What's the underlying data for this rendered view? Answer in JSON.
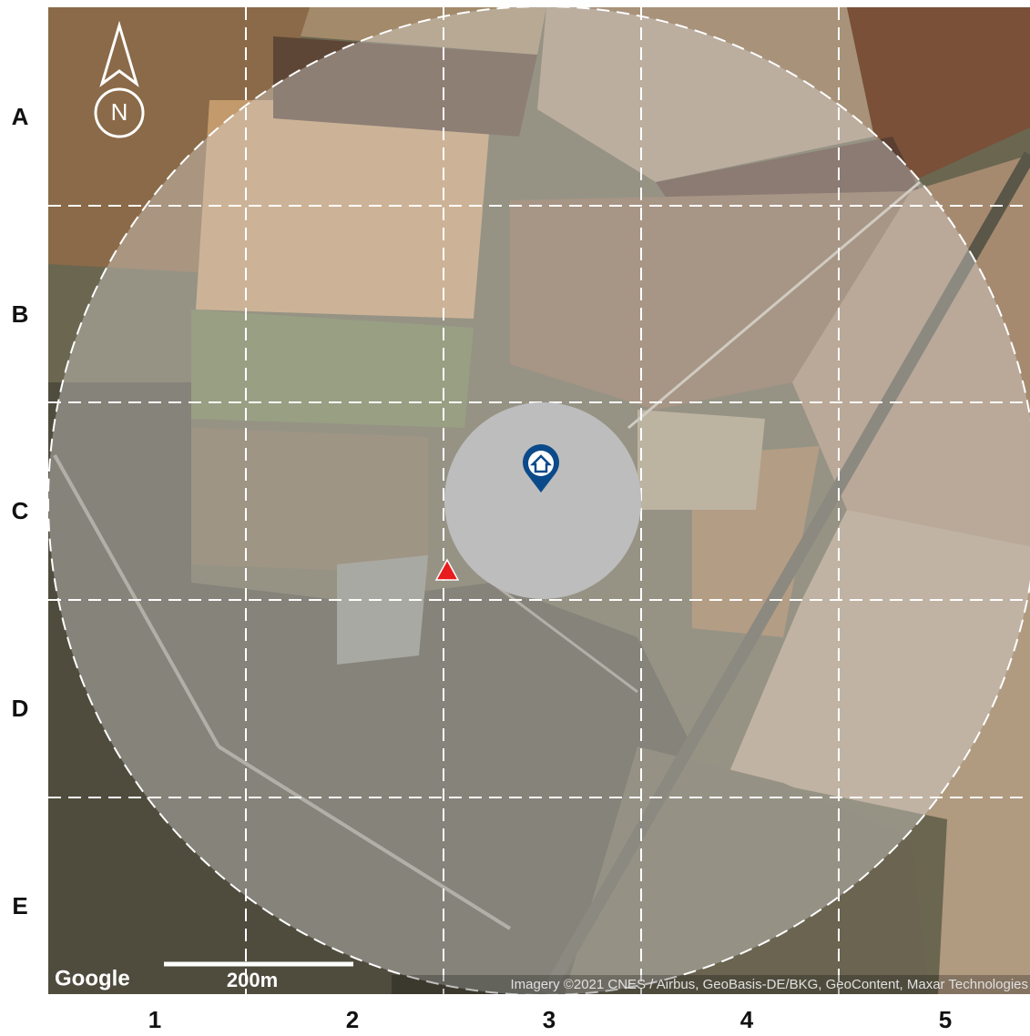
{
  "map": {
    "row_labels": [
      "A",
      "B",
      "C",
      "D",
      "E"
    ],
    "column_labels": [
      "1",
      "2",
      "3",
      "4",
      "5"
    ],
    "north_label": "N",
    "logo": "Google",
    "scale_label": "200m",
    "attribution": "Imagery ©2021 CNES / Airbus, GeoBasis-DE/BKG, GeoContent, Maxar Technologies"
  }
}
